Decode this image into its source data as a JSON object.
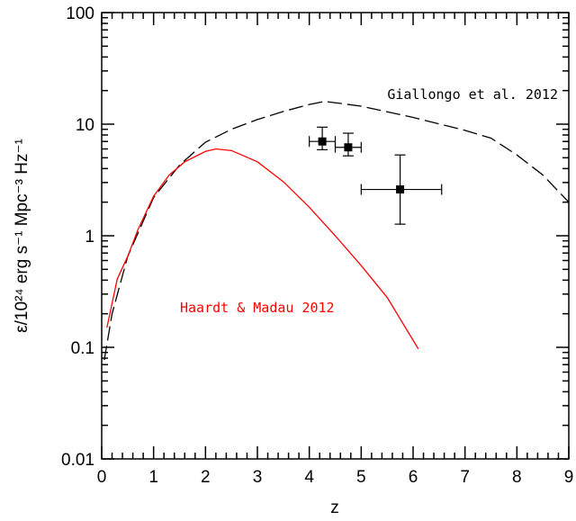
{
  "chart_data": {
    "type": "line",
    "xlabel": "z",
    "ylabel": "ε/10²⁴ erg s⁻¹ Mpc⁻³ Hz⁻¹",
    "xlim": [
      0,
      9
    ],
    "ylim": [
      0.01,
      100
    ],
    "ylog": true,
    "xticks": [
      0,
      1,
      2,
      3,
      4,
      5,
      6,
      7,
      8,
      9
    ],
    "yticks": [
      0.01,
      0.1,
      1,
      10,
      100
    ],
    "series": [
      {
        "name": "Giallongo et al. 2012",
        "color": "#000000",
        "dashed": true,
        "x": [
          0.05,
          0.2,
          0.5,
          1,
          1.5,
          2,
          2.5,
          3,
          3.5,
          4,
          4.3,
          5,
          6,
          7,
          7.5,
          8,
          8.5,
          9
        ],
        "values": [
          0.077,
          0.2,
          0.65,
          2.2,
          4.3,
          6.9,
          9,
          11,
          13,
          15,
          16,
          14.5,
          11.5,
          8.8,
          7.5,
          5.3,
          3.5,
          2.0
        ]
      },
      {
        "name": "Haardt & Madau 2012",
        "color": "#ff0000",
        "dashed": false,
        "x": [
          0.1,
          0.3,
          0.5,
          0.7,
          1.0,
          1.3,
          1.6,
          2.0,
          2.2,
          2.5,
          3.0,
          3.5,
          4.0,
          4.5,
          5.0,
          5.5,
          6.1
        ],
        "values": [
          0.15,
          0.41,
          0.65,
          1.14,
          2.26,
          3.5,
          4.6,
          5.7,
          6.0,
          5.8,
          4.6,
          3.05,
          1.8,
          1.0,
          0.54,
          0.28,
          0.097
        ]
      }
    ],
    "points": {
      "color": "#000000",
      "x": [
        4.25,
        4.75,
        5.75
      ],
      "values": [
        7.0,
        6.2,
        2.6
      ],
      "x_low": [
        4.0,
        4.5,
        5.0
      ],
      "x_high": [
        4.5,
        5.0,
        6.55
      ],
      "y_low": [
        5.9,
        5.2,
        1.27
      ],
      "y_high": [
        9.4,
        8.3,
        5.3
      ]
    }
  }
}
